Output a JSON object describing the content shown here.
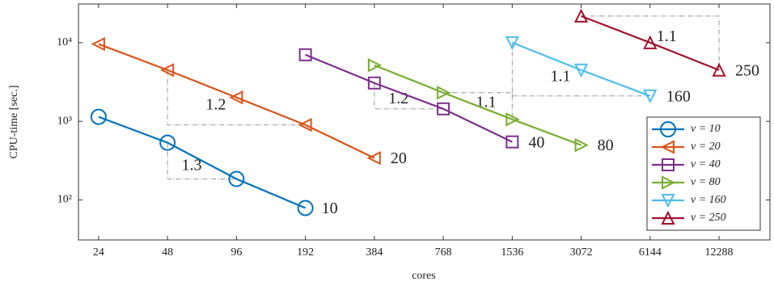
{
  "chart_data": {
    "type": "line",
    "xlabel": "cores",
    "ylabel": "CPU-time [sec.]",
    "xlog": true,
    "ylog": true,
    "xlim": [
      19.6,
      20500
    ],
    "ylim": [
      31,
      31000
    ],
    "xticks": [
      24,
      48,
      96,
      192,
      384,
      768,
      1536,
      3072,
      6144,
      12288
    ],
    "yticks": [
      {
        "value": 100,
        "label": "10²"
      },
      {
        "value": 1000,
        "label": "10³"
      },
      {
        "value": 10000,
        "label": "10⁴"
      }
    ],
    "legend": "lower-right",
    "series": [
      {
        "name": "ν = 10",
        "end_label": "10",
        "color": "#0072bd",
        "marker": "circle",
        "x": [
          24,
          48,
          96,
          192
        ],
        "values": [
          1140,
          535,
          185,
          79
        ]
      },
      {
        "name": "ν = 20",
        "end_label": "20",
        "color": "#d95319",
        "marker": "triangle-left",
        "x": [
          24,
          48,
          96,
          192,
          384
        ],
        "values": [
          9600,
          4480,
          2010,
          900,
          341
        ]
      },
      {
        "name": "ν = 40",
        "end_label": "40",
        "color": "#7e2f8e",
        "marker": "square",
        "x": [
          192,
          384,
          768,
          1536
        ],
        "values": [
          7020,
          3070,
          1440,
          547
        ]
      },
      {
        "name": "ν = 80",
        "end_label": "80",
        "color": "#77ac30",
        "marker": "triangle-right",
        "x": [
          384,
          768,
          1536,
          3072
        ],
        "values": [
          5170,
          2310,
          1060,
          498
        ]
      },
      {
        "name": "ν = 160",
        "end_label": "160",
        "color": "#4dbeee",
        "marker": "triangle-down",
        "x": [
          1536,
          3072,
          6144
        ],
        "values": [
          10000,
          4480,
          2100
        ]
      },
      {
        "name": "ν = 250",
        "end_label": "250",
        "color": "#a2142f",
        "marker": "triangle-up",
        "x": [
          3072,
          6144,
          12288
        ],
        "values": [
          21800,
          10000,
          4480
        ]
      }
    ],
    "annotations": [
      {
        "text": "1.3",
        "corner": "lower-left",
        "x": [
          48,
          96
        ],
        "y": [
          535,
          185
        ]
      },
      {
        "text": "1.2",
        "corner": "lower-left",
        "x": [
          48,
          192
        ],
        "y": [
          4480,
          900
        ]
      },
      {
        "text": "1.2",
        "corner": "lower-left",
        "x": [
          384,
          768
        ],
        "y": [
          3070,
          1440
        ]
      },
      {
        "text": "1.1",
        "corner": "upper-right",
        "x": [
          768,
          1536
        ],
        "y": [
          2310,
          1060
        ]
      },
      {
        "text": "1.1",
        "corner": "lower-left",
        "x": [
          1536,
          6144
        ],
        "y": [
          10000,
          2100
        ]
      },
      {
        "text": "1.1",
        "corner": "upper-right",
        "x": [
          3072,
          12288
        ],
        "y": [
          21800,
          4480
        ]
      }
    ]
  }
}
